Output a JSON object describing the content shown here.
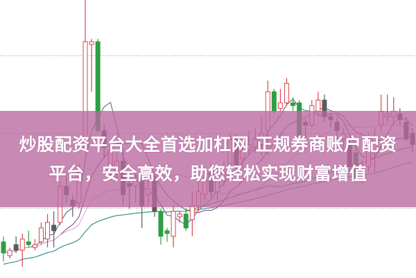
{
  "chart_data": {
    "type": "candlestick",
    "title": "",
    "xlabel": "",
    "ylabel": "",
    "ylim": [
      0,
      100
    ],
    "grid": true,
    "grid_levels": [
      25,
      52,
      80
    ],
    "colors": {
      "up": "#d9434b",
      "down": "#2e9e45",
      "down_gray": "#5b5b5b",
      "grid": "#b5b5b5"
    },
    "moving_averages": [
      {
        "period": 5,
        "color": "#5a6b80"
      },
      {
        "period": 10,
        "color": "#8a4a86"
      },
      {
        "period": 20,
        "color": "#e3a3d8"
      },
      {
        "period": 30,
        "color": "#4f8a3a"
      },
      {
        "period": 60,
        "color": "#3b9a9a"
      }
    ],
    "candles": [
      {
        "o": 13,
        "h": 15,
        "l": 6,
        "c": 9,
        "s": "down"
      },
      {
        "o": 8,
        "h": 11,
        "l": 7,
        "c": 10,
        "s": "up"
      },
      {
        "o": 12,
        "h": 15,
        "l": 9,
        "c": 10,
        "s": "down_gray"
      },
      {
        "o": 10,
        "h": 16,
        "l": 4,
        "c": 14,
        "s": "up"
      },
      {
        "o": 13,
        "h": 17,
        "l": 11,
        "c": 12,
        "s": "down"
      },
      {
        "o": 11,
        "h": 14,
        "l": 10,
        "c": 12,
        "s": "up"
      },
      {
        "o": 13,
        "h": 20,
        "l": 12,
        "c": 18,
        "s": "up"
      },
      {
        "o": 14,
        "h": 23,
        "l": 11,
        "c": 20,
        "s": "up"
      },
      {
        "o": 19,
        "h": 24,
        "l": 11,
        "c": 17,
        "s": "down_gray"
      },
      {
        "o": 20,
        "h": 35,
        "l": 19,
        "c": 33,
        "s": "up"
      },
      {
        "o": 33,
        "h": 37,
        "l": 27,
        "c": 30,
        "s": "down_gray"
      },
      {
        "o": 28,
        "h": 30,
        "l": 22,
        "c": 26,
        "s": "down_gray"
      },
      {
        "o": 27,
        "h": 41,
        "l": 25,
        "c": 38,
        "s": "up"
      },
      {
        "o": 46,
        "h": 100,
        "l": 45,
        "c": 85,
        "s": "up"
      },
      {
        "o": 84,
        "h": 86,
        "l": 67,
        "c": 85,
        "s": "up"
      },
      {
        "o": 85,
        "h": 86,
        "l": 52,
        "c": 53,
        "s": "down"
      },
      {
        "o": 53,
        "h": 55,
        "l": 43,
        "c": 47,
        "s": "down_gray"
      },
      {
        "o": 40,
        "h": 48,
        "l": 35,
        "c": 46,
        "s": "up"
      },
      {
        "o": 38,
        "h": 45,
        "l": 35,
        "c": 42,
        "s": "up"
      },
      {
        "o": 42,
        "h": 47,
        "l": 26,
        "c": 30,
        "s": "down_gray"
      },
      {
        "o": 34,
        "h": 37,
        "l": 25,
        "c": 33,
        "s": "down_gray"
      },
      {
        "o": 33,
        "h": 38,
        "l": 27,
        "c": 35,
        "s": "up"
      },
      {
        "o": 36,
        "h": 38,
        "l": 18,
        "c": 26,
        "s": "down_gray"
      },
      {
        "o": 30,
        "h": 37,
        "l": 26,
        "c": 32,
        "s": "up"
      },
      {
        "o": 35,
        "h": 37,
        "l": 22,
        "c": 24,
        "s": "down_gray"
      },
      {
        "o": 24,
        "h": 25,
        "l": 12,
        "c": 15,
        "s": "down"
      },
      {
        "o": 17,
        "h": 18,
        "l": 13,
        "c": 16,
        "s": "down"
      },
      {
        "o": 15,
        "h": 26,
        "l": 11,
        "c": 24,
        "s": "up"
      },
      {
        "o": 22,
        "h": 24,
        "l": 20,
        "c": 23,
        "s": "up"
      },
      {
        "o": 23,
        "h": 25,
        "l": 17,
        "c": 18,
        "s": "down"
      },
      {
        "o": 21,
        "h": 31,
        "l": 15,
        "c": 26,
        "s": "up"
      },
      {
        "o": 26,
        "h": 35,
        "l": 24,
        "c": 31,
        "s": "up"
      },
      {
        "o": 30,
        "h": 38,
        "l": 28,
        "c": 35,
        "s": "up"
      },
      {
        "o": 38,
        "h": 41,
        "l": 29,
        "c": 31,
        "s": "down_gray"
      },
      {
        "o": 31,
        "h": 39,
        "l": 28,
        "c": 35,
        "s": "up"
      },
      {
        "o": 35,
        "h": 42,
        "l": 33,
        "c": 38,
        "s": "up"
      },
      {
        "o": 41,
        "h": 52,
        "l": 39,
        "c": 50,
        "s": "up"
      },
      {
        "o": 50,
        "h": 52,
        "l": 39,
        "c": 40,
        "s": "down_gray"
      },
      {
        "o": 43,
        "h": 51,
        "l": 39,
        "c": 46,
        "s": "up"
      },
      {
        "o": 46,
        "h": 53,
        "l": 44,
        "c": 48,
        "s": "up"
      },
      {
        "o": 47,
        "h": 54,
        "l": 45,
        "c": 50,
        "s": "up"
      },
      {
        "o": 48,
        "h": 58,
        "l": 44,
        "c": 52,
        "s": "up"
      },
      {
        "o": 53,
        "h": 71,
        "l": 44,
        "c": 67,
        "s": "up"
      },
      {
        "o": 67,
        "h": 68,
        "l": 59,
        "c": 60,
        "s": "down"
      },
      {
        "o": 61,
        "h": 68,
        "l": 60,
        "c": 63,
        "s": "up"
      },
      {
        "o": 63,
        "h": 72,
        "l": 62,
        "c": 70,
        "s": "up"
      },
      {
        "o": 63,
        "h": 65,
        "l": 60,
        "c": 62,
        "s": "down"
      },
      {
        "o": 63,
        "h": 64,
        "l": 50,
        "c": 51,
        "s": "down"
      },
      {
        "o": 56,
        "h": 57,
        "l": 48,
        "c": 55,
        "s": "down_gray"
      },
      {
        "o": 55,
        "h": 64,
        "l": 54,
        "c": 62,
        "s": "up"
      },
      {
        "o": 60,
        "h": 67,
        "l": 58,
        "c": 64,
        "s": "up"
      },
      {
        "o": 64,
        "h": 66,
        "l": 56,
        "c": 58,
        "s": "down_gray"
      },
      {
        "o": 58,
        "h": 59,
        "l": 54,
        "c": 57,
        "s": "down_gray"
      },
      {
        "o": 56,
        "h": 58,
        "l": 48,
        "c": 53,
        "s": "down_gray"
      },
      {
        "o": 52,
        "h": 54,
        "l": 46,
        "c": 50,
        "s": "up"
      },
      {
        "o": 48,
        "h": 50,
        "l": 38,
        "c": 40,
        "s": "down_gray"
      },
      {
        "o": 45,
        "h": 48,
        "l": 35,
        "c": 36,
        "s": "down"
      },
      {
        "o": 37,
        "h": 42,
        "l": 34,
        "c": 40,
        "s": "up"
      },
      {
        "o": 40,
        "h": 52,
        "l": 38,
        "c": 49,
        "s": "up"
      },
      {
        "o": 45,
        "h": 54,
        "l": 38,
        "c": 51,
        "s": "up"
      },
      {
        "o": 55,
        "h": 66,
        "l": 53,
        "c": 60,
        "s": "up"
      },
      {
        "o": 58,
        "h": 66,
        "l": 56,
        "c": 59,
        "s": "up"
      },
      {
        "o": 58,
        "h": 65,
        "l": 55,
        "c": 60,
        "s": "up"
      },
      {
        "o": 59,
        "h": 61,
        "l": 55,
        "c": 57,
        "s": "down_gray"
      },
      {
        "o": 56,
        "h": 58,
        "l": 49,
        "c": 50,
        "s": "down_gray"
      },
      {
        "o": 52,
        "h": 54,
        "l": 45,
        "c": 48,
        "s": "down_gray"
      }
    ]
  },
  "banner": {
    "color": "#b969a0",
    "line1": "炒股配资平台大全首选加杠网 正规券商账户配资",
    "line2": "平台，安全高效，助您轻松实现财富增值"
  }
}
